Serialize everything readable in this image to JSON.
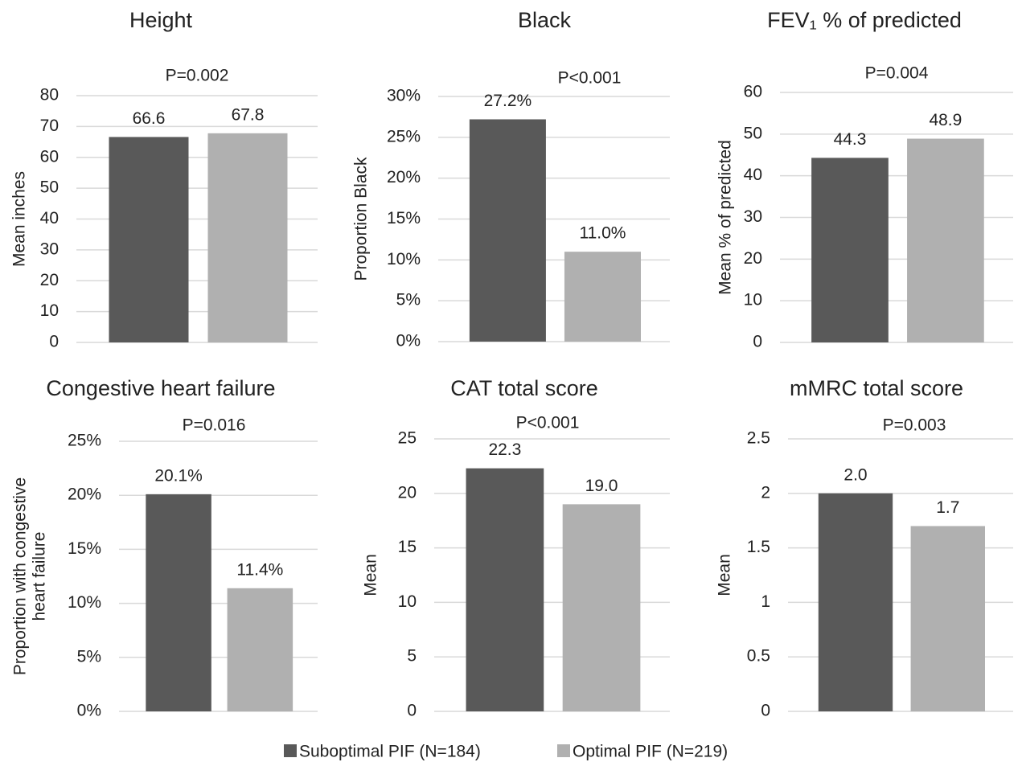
{
  "chart_data": [
    {
      "type": "bar",
      "title": "Height",
      "subtitle": "P=0.002",
      "ylabel": [
        "Mean inches"
      ],
      "values": [
        66.6,
        67.8
      ],
      "ylim": [
        0,
        80
      ],
      "yticks": [
        0,
        10,
        20,
        30,
        40,
        50,
        60,
        70,
        80
      ],
      "grid": true
    },
    {
      "type": "bar",
      "title": "Black",
      "subtitle": "P<0.001",
      "ylabel": [
        "Proportion Black"
      ],
      "values": [
        27.2,
        11.0
      ],
      "value_labels": [
        "27.2%",
        "11.0%"
      ],
      "ylim": [
        0,
        30
      ],
      "yticks": [
        {
          "value": 0,
          "label": "0%"
        },
        {
          "value": 5,
          "label": "5%"
        },
        {
          "value": 10,
          "label": "10%"
        },
        {
          "value": 15,
          "label": "15%"
        },
        {
          "value": 20,
          "label": "20%"
        },
        {
          "value": 25,
          "label": "25%"
        },
        {
          "value": 30,
          "label": "30%"
        }
      ],
      "grid": true
    },
    {
      "type": "bar",
      "title": "FEV₁ % of predicted",
      "subtitle": "P=0.004",
      "ylabel": [
        "Mean % of predicted"
      ],
      "values": [
        44.3,
        48.9
      ],
      "ylim": [
        0,
        60
      ],
      "yticks": [
        0,
        10,
        20,
        30,
        40,
        50,
        60
      ],
      "grid": true
    },
    {
      "type": "bar",
      "title": "Congestive heart failure",
      "subtitle": "P=0.016",
      "ylabel": [
        "Proportion with congestive",
        "heart failure"
      ],
      "values": [
        20.1,
        11.4
      ],
      "value_labels": [
        "20.1%",
        "11.4%"
      ],
      "ylim": [
        0,
        25
      ],
      "yticks": [
        {
          "value": 0,
          "label": "0%"
        },
        {
          "value": 5,
          "label": "5%"
        },
        {
          "value": 10,
          "label": "10%"
        },
        {
          "value": 15,
          "label": "15%"
        },
        {
          "value": 20,
          "label": "20%"
        },
        {
          "value": 25,
          "label": "25%"
        }
      ],
      "grid": true
    },
    {
      "type": "bar",
      "title": "CAT total score",
      "subtitle": "P<0.001",
      "ylabel": [
        "Mean"
      ],
      "values": [
        22.3,
        19.0
      ],
      "value_labels": [
        "22.3",
        "19.0"
      ],
      "ylim": [
        0,
        25
      ],
      "yticks": [
        0,
        5,
        10,
        15,
        20,
        25
      ],
      "grid": true
    },
    {
      "type": "bar",
      "title": "mMRC total score",
      "subtitle": "P=0.003",
      "ylabel": [
        "Mean"
      ],
      "values": [
        2.0,
        1.7
      ],
      "value_labels": [
        "2.0",
        "1.7"
      ],
      "ylim": [
        0,
        2.5
      ],
      "yticks": [
        0,
        0.5,
        1,
        1.5,
        2,
        2.5
      ],
      "grid": true
    }
  ],
  "legend": {
    "series": [
      {
        "name": "Suboptimal PIF (N=184)",
        "color": "#595959"
      },
      {
        "name": "Optimal PIF (N=219)",
        "color": "#b0b0b0"
      }
    ]
  }
}
